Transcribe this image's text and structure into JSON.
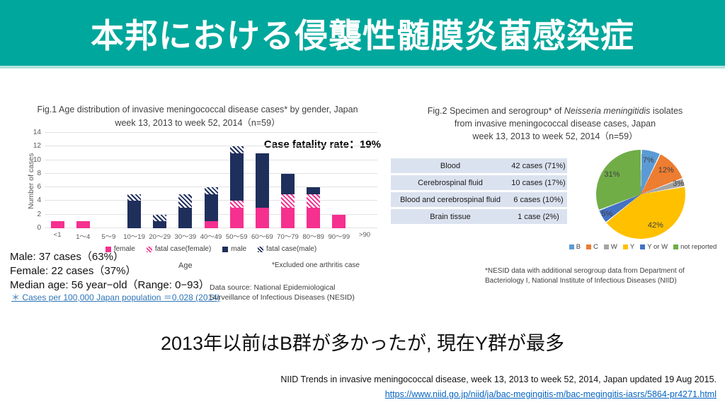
{
  "header": {
    "title": "本邦における侵襲性髄膜炎菌感染症"
  },
  "colors": {
    "header_teal": "#00A79C",
    "header_strip": "#B5E1DC",
    "link_blue": "#0563C1"
  },
  "fig1": {
    "title_line1": "Fig.1 Age distribution of invasive meningococcal disease cases* by gender,  Japan",
    "title_line2": "week 13, 2013 to week 52, 2014（n=59）",
    "case_fatality": "Case fatality rate：19%",
    "stats": [
      "Male: 37 cases（63%）",
      "Female: 22 cases（37%）",
      "Median age: 56 year−old（Range: 0−93）"
    ],
    "note_link": "＊ Cases per 100,000 Japan population ＝0.028 (2014)",
    "age_axis_label": "Age",
    "excluded_note": "*Excluded one arthritis case",
    "data_source": "Data source: National Epidemiological Surveillance of Infectious Diseases (NESID)"
  },
  "fig2": {
    "title_pre": "Fig.2 Specimen and serogroup*  of ",
    "title_species": "Neisseria meningitidis",
    "title_post": " isolates",
    "title_line2": "from invasive meningococcal disease cases, Japan",
    "title_line3": "week 13, 2013 to week 52, 2014（n=59）",
    "table": {
      "rows": [
        [
          "Blood",
          "42 cases (71%)"
        ],
        [
          "Cerebrospinal fluid",
          "10 cases (17%)"
        ],
        [
          "Blood and cerebrospinal fluid",
          "6 cases (10%)"
        ],
        [
          "Brain tissue",
          "1 case (2%)"
        ]
      ]
    },
    "footnote": "*NESID data with additional serogroup data from Department of Bacteriology I, National Institute of Infectious Diseases (NIID)"
  },
  "chart_data": [
    {
      "type": "bar",
      "stacked": true,
      "title": "Fig.1 Age distribution of invasive meningococcal disease cases* by gender, Japan week 13, 2013 to week 52, 2014 (n=59)",
      "categories": [
        "<1",
        "1〜4",
        "5〜9",
        "10〜19",
        "20〜29",
        "30〜39",
        "40〜49",
        "50〜59",
        "60〜69",
        "70〜79",
        "80〜89",
        "90〜99",
        ">90"
      ],
      "series": [
        {
          "name": "female",
          "color": "#F5308F",
          "pattern": "solid",
          "values": [
            1,
            1,
            0,
            0,
            0,
            0,
            1,
            3,
            3,
            3,
            3,
            2,
            0
          ]
        },
        {
          "name": "fatal case(female)",
          "color": "#F5308F",
          "pattern": "hatch",
          "values": [
            0,
            0,
            0,
            0,
            0,
            0,
            0,
            1,
            0,
            2,
            2,
            0,
            0
          ]
        },
        {
          "name": "male",
          "color": "#1F2F5C",
          "pattern": "solid",
          "values": [
            0,
            0,
            0,
            4,
            1,
            3,
            4,
            7,
            8,
            3,
            1,
            0,
            0
          ]
        },
        {
          "name": "fatal case(male)",
          "color": "#1F2F5C",
          "pattern": "hatch",
          "values": [
            0,
            0,
            0,
            1,
            1,
            2,
            1,
            1,
            0,
            0,
            0,
            0,
            0
          ]
        }
      ],
      "xlabel": "Age",
      "ylabel": "Number of cases",
      "ylim": [
        0,
        14
      ],
      "ytick_step": 2,
      "grid": true,
      "legend_position": "bottom",
      "annotation": "Case fatality rate：19%"
    },
    {
      "type": "pie",
      "title": "Fig.2 Specimen and serogroup* of Neisseria meningitidis isolates from invasive meningococcal disease cases, Japan week 13, 2013 to week 52, 2014 (n=59)",
      "labels": [
        "B",
        "C",
        "W",
        "Y",
        "Y or W",
        "not reported"
      ],
      "values": [
        7,
        12,
        3,
        42,
        5,
        31
      ],
      "data_labels": [
        "7%",
        "12%",
        "3%",
        "42%",
        "5%",
        "31%"
      ],
      "colors": [
        "#5B9BD5",
        "#ED7D31",
        "#A5A5A5",
        "#FFC000",
        "#4472C4",
        "#70AD47"
      ],
      "start_angle_deg": 0,
      "direction": "clockwise",
      "legend_position": "bottom"
    }
  ],
  "bottom": {
    "headline": "2013年以前はB群が多かったが, 現在Y群が最多",
    "citation": "NIID Trends in invasive meningococcal disease, week 13, 2013 to week 52, 2014, Japan updated 19 Aug 2015.",
    "url": "https://www.niid.go.jp/niid/ja/bac-megingitis-m/bac-megingitis-iasrs/5864-pr4271.html"
  }
}
